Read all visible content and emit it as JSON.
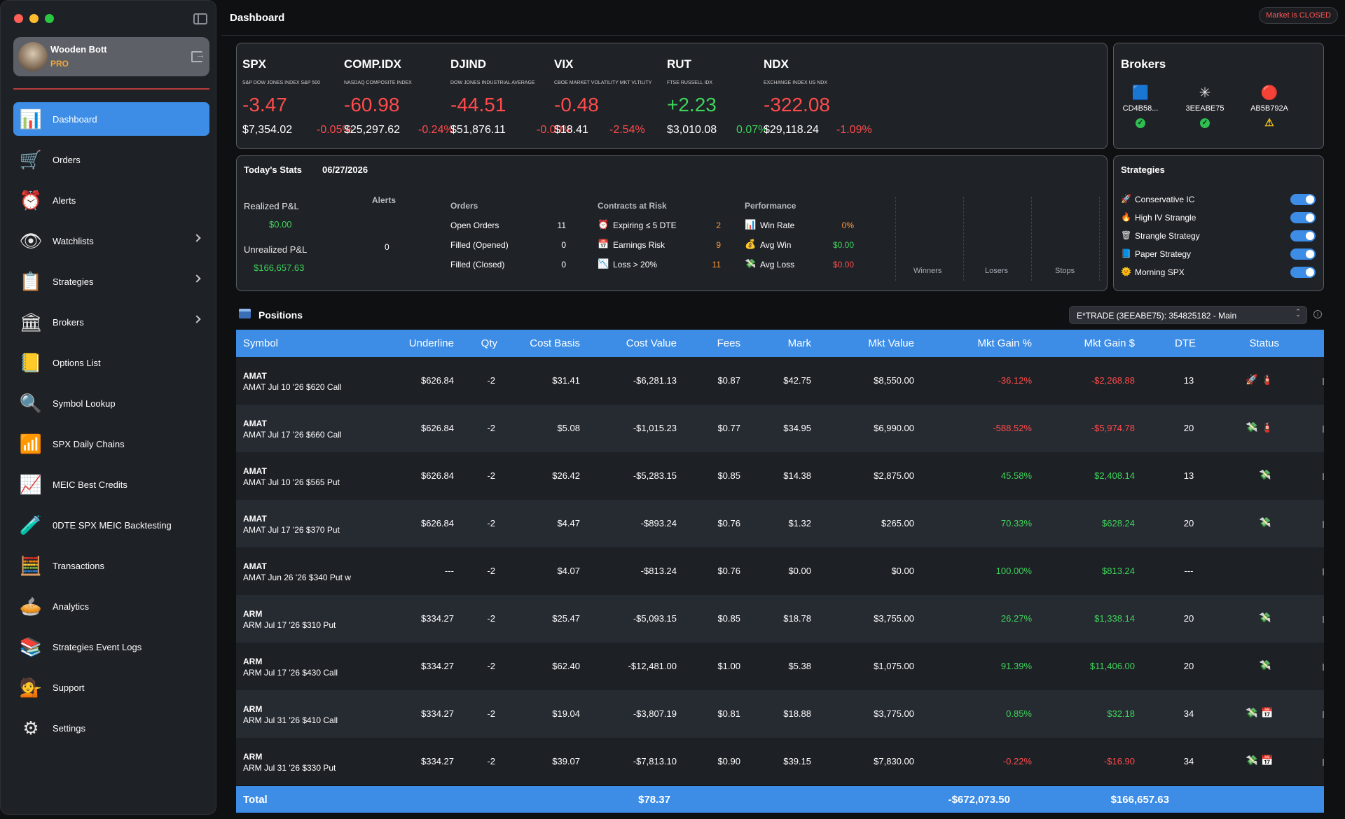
{
  "window": {
    "title": "Dashboard",
    "market_status": "Market is CLOSED"
  },
  "user": {
    "name": "Wooden Bott",
    "plan": "PRO"
  },
  "nav": [
    {
      "label": "Dashboard",
      "icon": "dashboard-icon",
      "glyph": "📊",
      "active": true,
      "chevron": false
    },
    {
      "label": "Orders",
      "icon": "cart-icon",
      "glyph": "🛒",
      "chevron": false
    },
    {
      "label": "Alerts",
      "icon": "alarm-clock-icon",
      "glyph": "⏰",
      "chevron": false
    },
    {
      "label": "Watchlists",
      "icon": "eye-icon",
      "glyph": "👁",
      "chevron": true
    },
    {
      "label": "Strategies",
      "icon": "strategy-icon",
      "glyph": "📋",
      "chevron": true
    },
    {
      "label": "Brokers",
      "icon": "bank-icon",
      "glyph": "🏛",
      "chevron": true
    },
    {
      "label": "Options List",
      "icon": "list-icon",
      "glyph": "📒",
      "chevron": false
    },
    {
      "label": "Symbol Lookup",
      "icon": "magnifier-icon",
      "glyph": "🔍",
      "chevron": false
    },
    {
      "label": "SPX Daily Chains",
      "icon": "bar-chart-icon",
      "glyph": "📶",
      "chevron": false
    },
    {
      "label": "MEIC Best Credits",
      "icon": "credits-chart-icon",
      "glyph": "📈",
      "chevron": false
    },
    {
      "label": "0DTE SPX MEIC Backtesting",
      "icon": "flask-icon",
      "glyph": "🧪",
      "chevron": false
    },
    {
      "label": "Transactions",
      "icon": "calculator-icon",
      "glyph": "🧮",
      "chevron": false
    },
    {
      "label": "Analytics",
      "icon": "pie-chart-icon",
      "glyph": "🥧",
      "chevron": false
    },
    {
      "label": "Strategies Event Logs",
      "icon": "event-log-icon",
      "glyph": "📚",
      "chevron": false
    },
    {
      "label": "Support",
      "icon": "support-icon",
      "glyph": "💁",
      "chevron": false
    },
    {
      "label": "Settings",
      "icon": "gears-icon",
      "glyph": "⚙",
      "chevron": false
    }
  ],
  "indexes": [
    {
      "symbol": "SPX",
      "desc": "S&P DOW JONES INDEX S&P 500",
      "change": "-3.47",
      "price": "$7,354.02",
      "pct": "-0.05%",
      "dir": "neg"
    },
    {
      "symbol": "COMP.IDX",
      "desc": "NASDAQ COMPOSITE INDEX",
      "change": "-60.98",
      "price": "$25,297.62",
      "pct": "-0.24%",
      "dir": "neg"
    },
    {
      "symbol": "DJIND",
      "desc": "DOW JONES INDUSTRIAL AVERAGE",
      "change": "-44.51",
      "price": "$51,876.11",
      "pct": "-0.09%",
      "dir": "neg"
    },
    {
      "symbol": "VIX",
      "desc": "CBOE MARKET VOLATILITY MKT VLTILITY",
      "change": "-0.48",
      "price": "$18.41",
      "pct": "-2.54%",
      "dir": "neg"
    },
    {
      "symbol": "RUT",
      "desc": "FTSE RUSSELL IDX",
      "change": "+2.23",
      "price": "$3,010.08",
      "pct": "0.07%",
      "dir": "pos"
    },
    {
      "symbol": "NDX",
      "desc": "EXCHANGE INDEX US NDX",
      "change": "-322.08",
      "price": "$29,118.24",
      "pct": "-1.09%",
      "dir": "neg"
    }
  ],
  "brokers": {
    "title": "Brokers",
    "items": [
      {
        "id": "CD4B58...",
        "logo": "schwab-logo-icon",
        "status": "ok"
      },
      {
        "id": "3EEABE75",
        "logo": "etrade-logo-icon",
        "status": "ok"
      },
      {
        "id": "AB5B792A",
        "logo": "broker-logo-icon",
        "status": "warn"
      },
      {
        "id": "€",
        "logo": "",
        "status": ""
      }
    ]
  },
  "stats": {
    "title": "Today's Stats",
    "date": "06/27/2026",
    "realized_label": "Realized P&L",
    "realized_value": "$0.00",
    "unrealized_label": "Unrealized P&L",
    "unrealized_value": "$166,657.63",
    "alerts_label": "Alerts",
    "alerts_value": "0",
    "orders_label": "Orders",
    "orders": [
      {
        "label": "Open Orders",
        "value": "11"
      },
      {
        "label": "Filled (Opened)",
        "value": "0"
      },
      {
        "label": "Filled (Closed)",
        "value": "0"
      }
    ],
    "risk_label": "Contracts at Risk",
    "risk": [
      {
        "icon": "alarm-icon",
        "glyph": "⏰",
        "label": "Expiring ≤ 5 DTE",
        "value": "2"
      },
      {
        "icon": "calendar-icon",
        "glyph": "📅",
        "label": "Earnings Risk",
        "value": "9"
      },
      {
        "icon": "chart-down-icon",
        "glyph": "📉",
        "label": "Loss > 20%",
        "value": "11"
      }
    ],
    "perf_label": "Performance",
    "perf": [
      {
        "icon": "bar-chart-icon",
        "glyph": "📊",
        "label": "Win Rate",
        "value": "0%",
        "cls": "orange"
      },
      {
        "icon": "money-bag-icon",
        "glyph": "💰",
        "label": "Avg Win",
        "value": "$0.00",
        "cls": "pos"
      },
      {
        "icon": "money-wings-icon",
        "glyph": "💸",
        "label": "Avg Loss",
        "value": "$0.00",
        "cls": "neg"
      }
    ],
    "columns": [
      "Winners",
      "Losers",
      "Stops"
    ]
  },
  "strategies": {
    "title": "Strategies",
    "items": [
      {
        "name": "Conservative IC",
        "icon": "rocket-icon",
        "glyph": "🚀",
        "on": true
      },
      {
        "name": "High IV Strangle",
        "icon": "fire-icon",
        "glyph": "🔥",
        "on": true
      },
      {
        "name": "Strangle Strategy",
        "icon": "trash-icon",
        "glyph": "🗑",
        "on": true
      },
      {
        "name": "Paper Strategy",
        "icon": "notebook-icon",
        "glyph": "📘",
        "on": true
      },
      {
        "name": "Morning SPX",
        "icon": "sun-face-icon",
        "glyph": "🌞",
        "on": true
      }
    ]
  },
  "positions": {
    "title": "Positions",
    "account": "E*TRADE (3EEABE75): 354825182 - Main",
    "columns": [
      "Symbol",
      "Underline",
      "Qty",
      "Cost Basis",
      "Cost Value",
      "Fees",
      "Mark",
      "Mkt Value",
      "Mkt Gain %",
      "Mkt Gain $",
      "DTE",
      "Status"
    ],
    "rows": [
      {
        "symbol": "AMAT",
        "desc": "AMAT Jul 10 '26 $620 Call",
        "underline": "$626.84",
        "qty": "-2",
        "cost_basis": "$31.41",
        "cost_value": "-$6,281.13",
        "fees": "$0.87",
        "mark": "$42.75",
        "mkt_value": "$8,550.00",
        "gain_pct": "-36.12%",
        "gain_usd": "-$2,268.88",
        "dte": "13",
        "dir": "neg",
        "status": [
          "🚀",
          "🧯"
        ]
      },
      {
        "symbol": "AMAT",
        "desc": "AMAT Jul 17 '26 $660 Call",
        "underline": "$626.84",
        "qty": "-2",
        "cost_basis": "$5.08",
        "cost_value": "-$1,015.23",
        "fees": "$0.77",
        "mark": "$34.95",
        "mkt_value": "$6,990.00",
        "gain_pct": "-588.52%",
        "gain_usd": "-$5,974.78",
        "dte": "20",
        "dir": "neg",
        "status": [
          "💸",
          "🧯"
        ]
      },
      {
        "symbol": "AMAT",
        "desc": "AMAT Jul 10 '26 $565 Put",
        "underline": "$626.84",
        "qty": "-2",
        "cost_basis": "$26.42",
        "cost_value": "-$5,283.15",
        "fees": "$0.85",
        "mark": "$14.38",
        "mkt_value": "$2,875.00",
        "gain_pct": "45.58%",
        "gain_usd": "$2,408.14",
        "dte": "13",
        "dir": "pos",
        "status": [
          "💸"
        ]
      },
      {
        "symbol": "AMAT",
        "desc": "AMAT Jul 17 '26 $370 Put",
        "underline": "$626.84",
        "qty": "-2",
        "cost_basis": "$4.47",
        "cost_value": "-$893.24",
        "fees": "$0.76",
        "mark": "$1.32",
        "mkt_value": "$265.00",
        "gain_pct": "70.33%",
        "gain_usd": "$628.24",
        "dte": "20",
        "dir": "pos",
        "status": [
          "💸"
        ]
      },
      {
        "symbol": "AMAT",
        "desc": "AMAT Jun 26 '26 $340 Put w",
        "underline": "---",
        "qty": "-2",
        "cost_basis": "$4.07",
        "cost_value": "-$813.24",
        "fees": "$0.76",
        "mark": "$0.00",
        "mkt_value": "$0.00",
        "gain_pct": "100.00%",
        "gain_usd": "$813.24",
        "dte": "---",
        "dir": "pos",
        "status": []
      },
      {
        "symbol": "ARM",
        "desc": "ARM Jul 17 '26 $310 Put",
        "underline": "$334.27",
        "qty": "-2",
        "cost_basis": "$25.47",
        "cost_value": "-$5,093.15",
        "fees": "$0.85",
        "mark": "$18.78",
        "mkt_value": "$3,755.00",
        "gain_pct": "26.27%",
        "gain_usd": "$1,338.14",
        "dte": "20",
        "dir": "pos",
        "status": [
          "💸"
        ]
      },
      {
        "symbol": "ARM",
        "desc": "ARM Jul 17 '26 $430 Call",
        "underline": "$334.27",
        "qty": "-2",
        "cost_basis": "$62.40",
        "cost_value": "-$12,481.00",
        "fees": "$1.00",
        "mark": "$5.38",
        "mkt_value": "$1,075.00",
        "gain_pct": "91.39%",
        "gain_usd": "$11,406.00",
        "dte": "20",
        "dir": "pos",
        "status": [
          "💸"
        ]
      },
      {
        "symbol": "ARM",
        "desc": "ARM Jul 31 '26 $410 Call",
        "underline": "$334.27",
        "qty": "-2",
        "cost_basis": "$19.04",
        "cost_value": "-$3,807.19",
        "fees": "$0.81",
        "mark": "$18.88",
        "mkt_value": "$3,775.00",
        "gain_pct": "0.85%",
        "gain_usd": "$32.18",
        "dte": "34",
        "dir": "pos",
        "status": [
          "💸",
          "📅"
        ]
      },
      {
        "symbol": "ARM",
        "desc": "ARM Jul 31 '26 $330 Put",
        "underline": "$334.27",
        "qty": "-2",
        "cost_basis": "$39.07",
        "cost_value": "-$7,813.10",
        "fees": "$0.90",
        "mark": "$39.15",
        "mkt_value": "$7,830.00",
        "gain_pct": "-0.22%",
        "gain_usd": "-$16.90",
        "dte": "34",
        "dir": "neg",
        "status": [
          "💸",
          "📅"
        ]
      }
    ],
    "total": {
      "label": "Total",
      "fees": "$78.37",
      "mkt_value": "-$672,073.50",
      "gain_usd": "$166,657.63"
    }
  },
  "colors": {
    "accent": "#3d8de6",
    "negative": "#ff4b4b",
    "positive": "#3fd45b",
    "warning": "#ff9a3c"
  }
}
